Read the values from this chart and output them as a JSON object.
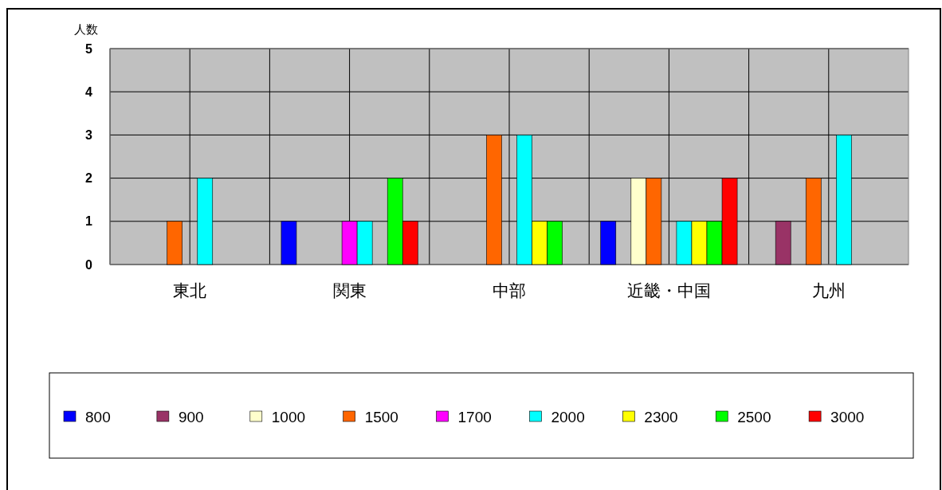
{
  "chart_data": {
    "type": "bar",
    "ylabel": "人数",
    "categories": [
      "東北",
      "関東",
      "中部",
      "近畿・中国",
      "九州"
    ],
    "series": [
      {
        "name": "800",
        "color": "#0000ff",
        "values": [
          0,
          1,
          0,
          1,
          0
        ]
      },
      {
        "name": "900",
        "color": "#993366",
        "values": [
          0,
          0,
          0,
          0,
          1
        ]
      },
      {
        "name": "1000",
        "color": "#ffffcc",
        "values": [
          0,
          0,
          0,
          2,
          0
        ]
      },
      {
        "name": "1500",
        "color": "#ff6600",
        "values": [
          1,
          0,
          3,
          2,
          2
        ]
      },
      {
        "name": "1700",
        "color": "#ff00ff",
        "values": [
          0,
          1,
          0,
          0,
          0
        ]
      },
      {
        "name": "2000",
        "color": "#00ffff",
        "values": [
          2,
          1,
          3,
          1,
          3
        ]
      },
      {
        "name": "2300",
        "color": "#ffff00",
        "values": [
          0,
          0,
          1,
          1,
          0
        ]
      },
      {
        "name": "2500",
        "color": "#00ff00",
        "values": [
          0,
          2,
          1,
          1,
          0
        ]
      },
      {
        "name": "3000",
        "color": "#ff0000",
        "values": [
          0,
          1,
          0,
          2,
          0
        ]
      }
    ],
    "ylim": [
      0,
      5
    ],
    "yticks": [
      0,
      1,
      2,
      3,
      4,
      5
    ],
    "grid": true,
    "legend": "bottom"
  }
}
